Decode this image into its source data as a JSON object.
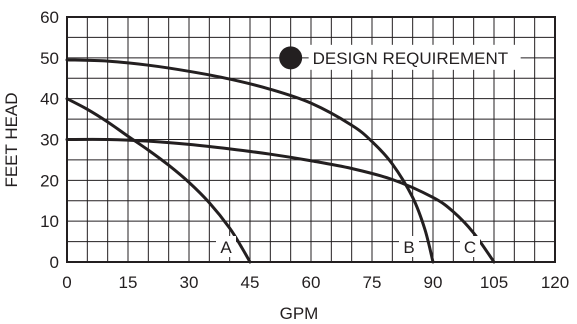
{
  "chart_data": {
    "type": "line",
    "title": "",
    "xlabel": "GPM",
    "ylabel": "FEET HEAD",
    "xlim": [
      0,
      120
    ],
    "ylim": [
      0,
      60
    ],
    "x_ticks": [
      "0",
      "15",
      "30",
      "45",
      "60",
      "75",
      "90",
      "105",
      "120"
    ],
    "y_ticks": [
      "0",
      "10",
      "20",
      "30",
      "40",
      "50",
      "60"
    ],
    "grid": true,
    "series": [
      {
        "name": "A",
        "x": [
          0,
          5,
          10,
          15,
          20,
          25,
          30,
          35,
          40,
          43,
          45
        ],
        "y": [
          40,
          37.4,
          34.3,
          30.8,
          27.4,
          23.7,
          19.5,
          14.5,
          8.3,
          3.5,
          0
        ]
      },
      {
        "name": "B",
        "x": [
          0,
          10,
          20,
          30,
          40,
          50,
          60,
          70,
          75,
          80,
          85,
          88,
          90
        ],
        "y": [
          49.5,
          49.2,
          48.2,
          46.7,
          44.8,
          42.3,
          38.9,
          33.5,
          29.5,
          24,
          15.8,
          8,
          0
        ]
      },
      {
        "name": "C",
        "x": [
          0,
          10,
          20,
          30,
          40,
          50,
          60,
          70,
          80,
          90,
          95,
          100,
          105
        ],
        "y": [
          30,
          30,
          29.6,
          28.8,
          27.7,
          26.4,
          24.8,
          22.9,
          20.2,
          15.8,
          12.3,
          7.1,
          0
        ]
      }
    ],
    "annotations": [
      {
        "text": "DESIGN REQUIREMENT",
        "x": 55,
        "y": 50
      }
    ]
  }
}
